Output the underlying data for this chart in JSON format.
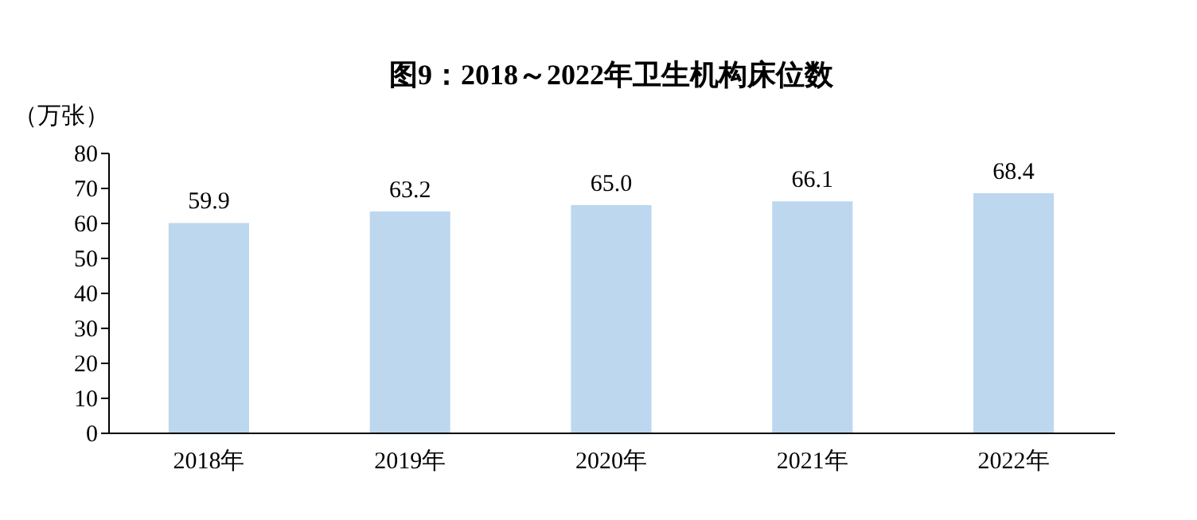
{
  "chart_data": {
    "type": "bar",
    "title": "图9：2018～2022年卫生机构床位数",
    "ylabel": "（万张）",
    "categories": [
      "2018年",
      "2019年",
      "2020年",
      "2021年",
      "2022年"
    ],
    "values": [
      59.9,
      63.2,
      65.0,
      66.1,
      68.4
    ],
    "value_labels": [
      "59.9",
      "63.2",
      "65.0",
      "66.1",
      "68.4"
    ],
    "color": "#bdd7ee",
    "ylim": [
      0,
      80
    ],
    "yticks": [
      0,
      10,
      20,
      30,
      40,
      50,
      60,
      70,
      80
    ],
    "grid": false
  }
}
